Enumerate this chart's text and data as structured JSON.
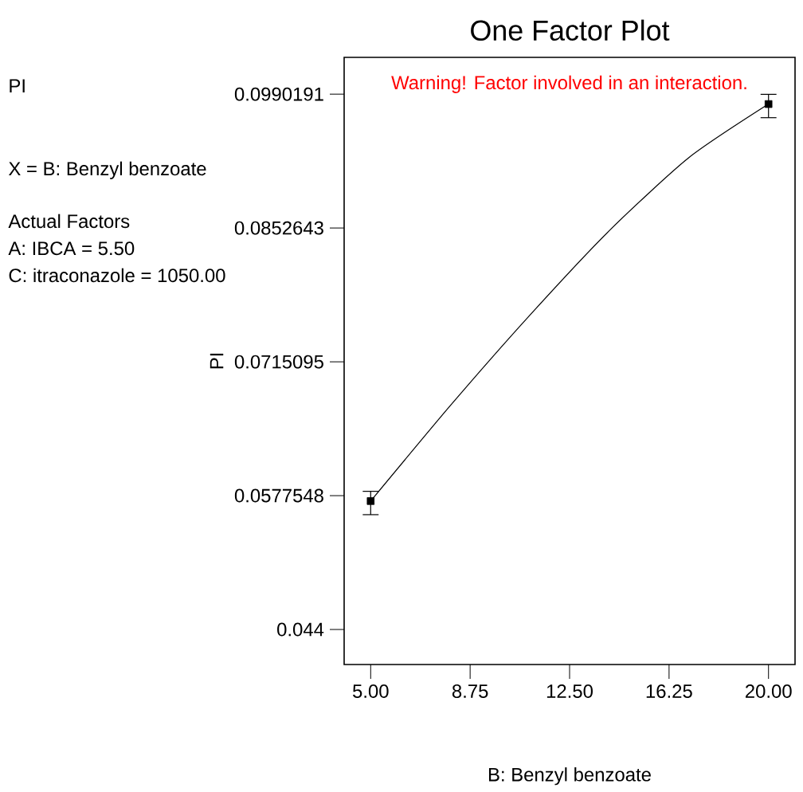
{
  "chart_data": {
    "type": "line",
    "title": "One Factor Plot",
    "xlabel": "B: Benzyl benzoate",
    "ylabel": "PI",
    "annotations": [
      "PI",
      "X = B: Benzyl benzoate",
      "Actual Factors",
      "A: IBCA = 5.50",
      "C: itraconazole = 1050.00",
      "Warning! Factor involved in an interaction."
    ],
    "xlim": [
      4,
      21
    ],
    "ylim": [
      0.0404,
      0.1028
    ],
    "xticks": [
      {
        "value": 5,
        "label": "5.00"
      },
      {
        "value": 8.75,
        "label": "8.75"
      },
      {
        "value": 12.5,
        "label": "12.50"
      },
      {
        "value": 16.25,
        "label": "16.25"
      },
      {
        "value": 20,
        "label": "20.00"
      }
    ],
    "yticks": [
      0.044,
      0.0577548,
      0.0715095,
      0.0852643,
      0.0990191
    ],
    "grid": false,
    "series": [
      {
        "color": "#000000",
        "marker": "none",
        "line_style": "solid",
        "x": [
          5,
          8,
          11,
          14,
          17,
          20
        ],
        "values": [
          0.0572,
          0.067,
          0.0763,
          0.085,
          0.0925,
          0.098
        ]
      },
      {
        "type": "scatter",
        "color": "#000000",
        "marker": "square",
        "x": [
          5,
          20
        ],
        "values": [
          0.0572,
          0.098
        ],
        "errors": [
          [
            0.0558,
            0.0582
          ],
          [
            0.0966,
            0.099
          ]
        ]
      }
    ]
  }
}
